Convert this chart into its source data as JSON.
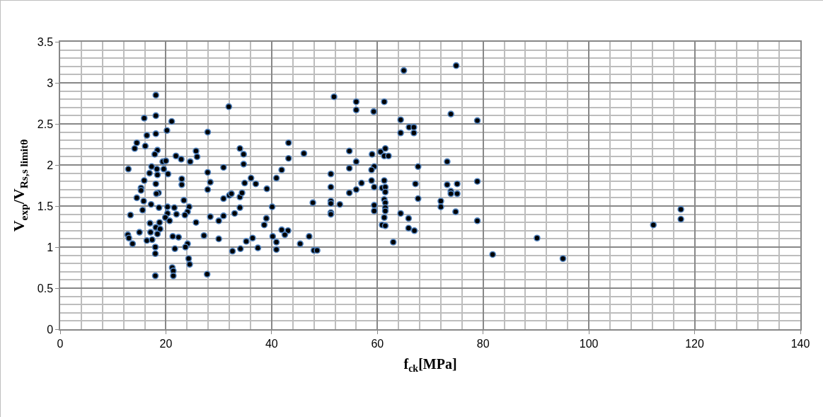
{
  "chart_data": {
    "type": "scatter",
    "xlabel": "f$_{ck}$[MPa]",
    "ylabel": "V$_{exp}$/V$_{Rs,s limitθ}$",
    "x": [
      18.1,
      15.9,
      18.1,
      21.1,
      20.2,
      16.4,
      18.1,
      14.5,
      14.1,
      16.1,
      18.4,
      17.9,
      21.9,
      22.9,
      24.6,
      12.9,
      17.3,
      19.4,
      20.0,
      18.3,
      19.6,
      16.9,
      18.4,
      20.4,
      15.9,
      23.0,
      23.0,
      18.1,
      15.3,
      15.3,
      18.6,
      18.2,
      14.5,
      15.8,
      23.4,
      17.2,
      18.7,
      20.3,
      21.6,
      24.4,
      15.6,
      24.1,
      20.3,
      22.0,
      23.6,
      13.3,
      19.9,
      20.7,
      25.7,
      17.0,
      18.8,
      18.1,
      18.9,
      15.0,
      17.1,
      18.4,
      12.8,
      13.0,
      13.7,
      16.4,
      17.4,
      21.3,
      22.4,
      18.0,
      24.1,
      23.7,
      21.7,
      18.0,
      24.3,
      24.5,
      21.2,
      21.4,
      21.4,
      18.0,
      25.7,
      25.9,
      31.9,
      27.9,
      34.0,
      34.7,
      34.7,
      30.9,
      27.9,
      28.4,
      27.9,
      36.1,
      34.9,
      37.0,
      39.1,
      32.0,
      32.4,
      30.9,
      34.0,
      34.4,
      34.0,
      33.0,
      30.9,
      28.4,
      30.0,
      40.1,
      39.0,
      38.6,
      27.2,
      30.0,
      36.4,
      35.2,
      32.6,
      34.1,
      37.4,
      27.8,
      40.2,
      40.9,
      40.9,
      41.9,
      40.9,
      43.2,
      43.2,
      46.1,
      41.9,
      43.1,
      42.5,
      45.4,
      47.1,
      48.0,
      48.6,
      47.8,
      51.8,
      56.0,
      56.0,
      54.7,
      56.0,
      54.7,
      51.2,
      51.2,
      57.0,
      56.0,
      54.7,
      51.2,
      51.2,
      52.9,
      51.2,
      51.2,
      65.0,
      74.9,
      61.3,
      59.3,
      64.4,
      73.9,
      78.9,
      66.0,
      66.9,
      64.4,
      66.9,
      59.0,
      60.6,
      61.5,
      61.3,
      62.1,
      73.2,
      67.7,
      59.4,
      58.9,
      58.9,
      61.3,
      59.4,
      60.9,
      61.5,
      61.5,
      67.2,
      73.2,
      75.1,
      78.9,
      73.9,
      73.9,
      75.1,
      67.7,
      72.0,
      72.0,
      61.3,
      61.5,
      59.4,
      59.4,
      61.5,
      61.5,
      74.8,
      64.4,
      61.3,
      65.9,
      60.9,
      61.5,
      65.9,
      67.0,
      78.9,
      63.0,
      90.2,
      81.8,
      95.1,
      112.2,
      117.4,
      117.4
    ],
    "series": [
      {
        "color": "#000000",
        "values": [
          2.85,
          2.57,
          2.6,
          2.53,
          2.42,
          2.36,
          2.38,
          2.27,
          2.2,
          2.23,
          2.18,
          2.13,
          2.11,
          2.07,
          2.04,
          1.95,
          1.98,
          2.04,
          2.05,
          1.95,
          1.95,
          1.9,
          1.88,
          1.89,
          1.81,
          1.83,
          1.76,
          1.77,
          1.72,
          1.69,
          1.66,
          1.65,
          1.6,
          1.56,
          1.57,
          1.52,
          1.48,
          1.49,
          1.48,
          1.49,
          1.45,
          1.43,
          1.41,
          1.4,
          1.39,
          1.39,
          1.36,
          1.32,
          1.3,
          1.29,
          1.3,
          1.24,
          1.22,
          1.18,
          1.18,
          1.16,
          1.15,
          1.11,
          1.04,
          1.08,
          1.09,
          1.13,
          1.12,
          1.0,
          1.04,
          1.0,
          0.98,
          0.92,
          0.86,
          0.79,
          0.75,
          0.71,
          0.65,
          0.65,
          2.17,
          2.1,
          2.71,
          2.4,
          2.2,
          2.13,
          2.01,
          1.97,
          1.91,
          1.79,
          1.7,
          1.84,
          1.78,
          1.77,
          1.71,
          1.63,
          1.65,
          1.59,
          1.61,
          1.66,
          1.48,
          1.41,
          1.38,
          1.37,
          1.32,
          1.49,
          1.35,
          1.27,
          1.14,
          1.1,
          1.11,
          1.07,
          0.95,
          0.98,
          0.99,
          0.67,
          1.13,
          1.06,
          0.97,
          1.94,
          1.84,
          2.27,
          2.08,
          2.14,
          1.21,
          1.2,
          1.15,
          1.04,
          1.13,
          0.96,
          0.96,
          1.54,
          2.83,
          2.77,
          2.67,
          2.17,
          2.04,
          1.96,
          1.89,
          1.73,
          1.78,
          1.7,
          1.66,
          1.56,
          1.53,
          1.52,
          1.42,
          1.4,
          3.15,
          3.21,
          2.77,
          2.65,
          2.55,
          2.62,
          2.54,
          2.46,
          2.46,
          2.39,
          2.39,
          2.13,
          2.16,
          2.2,
          2.11,
          2.11,
          2.04,
          1.98,
          1.98,
          1.94,
          1.81,
          1.81,
          1.73,
          1.72,
          1.73,
          1.67,
          1.77,
          1.76,
          1.77,
          1.8,
          1.68,
          1.65,
          1.65,
          1.59,
          1.56,
          1.49,
          1.58,
          1.54,
          1.51,
          1.44,
          1.48,
          1.44,
          1.43,
          1.41,
          1.36,
          1.35,
          1.27,
          1.26,
          1.23,
          1.2,
          1.32,
          1.06,
          1.11,
          0.91,
          0.86,
          1.27,
          1.46,
          1.34
        ]
      }
    ],
    "xlim": [
      0,
      140
    ],
    "xticks": [
      0,
      20,
      40,
      60,
      80,
      100,
      120,
      140
    ],
    "ylim": [
      0,
      3.5
    ],
    "yticks": [
      0,
      0.5,
      1,
      1.5,
      2,
      2.5,
      3,
      3.5
    ],
    "grid": true,
    "marker": "circle"
  }
}
